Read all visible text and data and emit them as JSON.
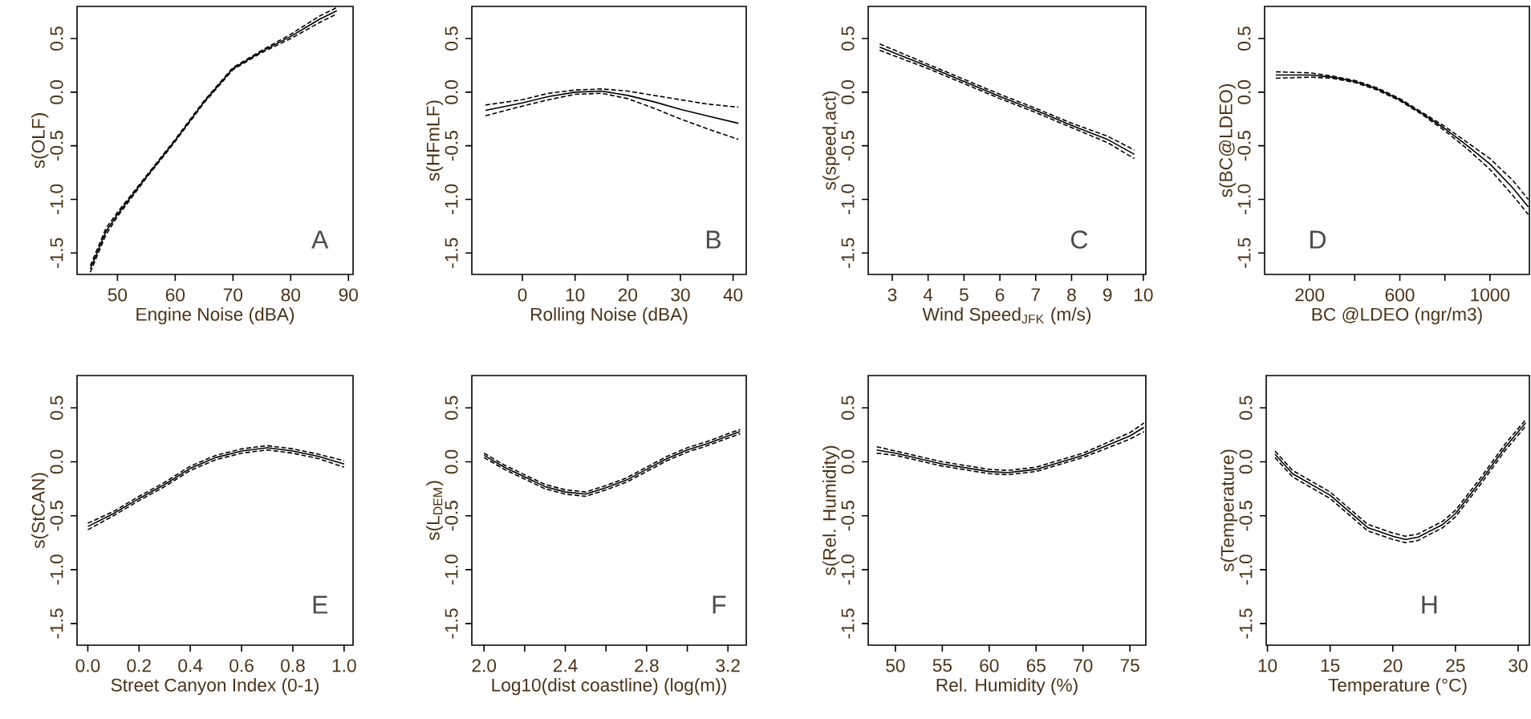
{
  "chart_data": [
    {
      "type": "line",
      "xlabel": "Engine Noise (dBA)",
      "ylabel": "s(OLF)",
      "annotations": [
        "A"
      ],
      "xlim": [
        43,
        90.8
      ],
      "ylim": [
        -1.7,
        0.8
      ],
      "xticks": [
        50,
        60,
        70,
        80,
        90
      ],
      "yticks": [
        {
          "value": -1.5,
          "label": "-1.5"
        },
        {
          "value": -1.0,
          "label": "-1.0"
        },
        {
          "value": -0.5,
          "label": "-0.5"
        },
        {
          "value": 0.0,
          "label": "0.0"
        },
        {
          "value": 0.5,
          "label": "0.5"
        }
      ],
      "grid": false,
      "x": [
        45.3,
        48,
        50,
        55,
        60,
        65,
        70,
        75,
        80,
        85,
        88
      ],
      "series": [
        {
          "color": "#000000",
          "line_style": "solid",
          "values": [
            -1.65,
            -1.3,
            -1.14,
            -0.79,
            -0.45,
            -0.09,
            0.22,
            0.38,
            0.52,
            0.68,
            0.76
          ]
        },
        {
          "color": "#000000",
          "line_style": "dashed",
          "values": [
            -1.68,
            -1.33,
            -1.16,
            -0.8,
            -0.46,
            -0.1,
            0.21,
            0.37,
            0.5,
            0.65,
            0.73
          ]
        },
        {
          "color": "#000000",
          "line_style": "dashed",
          "values": [
            -1.62,
            -1.27,
            -1.12,
            -0.78,
            -0.44,
            -0.08,
            0.23,
            0.39,
            0.54,
            0.71,
            0.79
          ]
        }
      ]
    },
    {
      "type": "line",
      "xlabel": "Rolling Noise (dBA)",
      "ylabel": "s(HFmLF)",
      "annotations": [
        "B"
      ],
      "xlim": [
        -9.6,
        42.5
      ],
      "ylim": [
        -1.7,
        0.8
      ],
      "xticks": [
        0,
        10,
        20,
        30,
        40
      ],
      "yticks": [
        {
          "value": -1.5,
          "label": "-1.5"
        },
        {
          "value": -1.0,
          "label": "-1.0"
        },
        {
          "value": -0.5,
          "label": "-0.5"
        },
        {
          "value": 0.0,
          "label": "0.0"
        },
        {
          "value": 0.5,
          "label": "0.5"
        }
      ],
      "grid": false,
      "x": [
        -7,
        0,
        5,
        10,
        15,
        20,
        25,
        30,
        35,
        41
      ],
      "series": [
        {
          "color": "#000000",
          "line_style": "solid",
          "values": [
            -0.17,
            -0.1,
            -0.04,
            0,
            0.01,
            -0.03,
            -0.09,
            -0.16,
            -0.22,
            -0.29
          ]
        },
        {
          "color": "#000000",
          "line_style": "dashed",
          "values": [
            -0.22,
            -0.13,
            -0.07,
            -0.02,
            -0.01,
            -0.06,
            -0.15,
            -0.25,
            -0.34,
            -0.44
          ]
        },
        {
          "color": "#000000",
          "line_style": "dashed",
          "values": [
            -0.12,
            -0.07,
            -0.01,
            0.02,
            0.03,
            0.01,
            -0.03,
            -0.07,
            -0.11,
            -0.14
          ]
        }
      ]
    },
    {
      "type": "line",
      "xlabel": "Wind Speed$_{JFK}$ (m/s)",
      "ylabel": "s(speed,act)",
      "annotations": [
        "C"
      ],
      "xlim": [
        2.33,
        10.07
      ],
      "ylim": [
        -1.7,
        0.8
      ],
      "xticks": [
        3,
        4,
        5,
        6,
        7,
        8,
        9,
        10
      ],
      "yticks": [
        {
          "value": -1.5,
          "label": "-1.5"
        },
        {
          "value": -1.0,
          "label": "-1.0"
        },
        {
          "value": -0.5,
          "label": "-0.5"
        },
        {
          "value": 0.0,
          "label": "0.0"
        },
        {
          "value": 0.5,
          "label": "0.5"
        }
      ],
      "grid": false,
      "x": [
        2.65,
        4,
        5,
        6,
        7,
        8,
        9,
        9.75
      ],
      "series": [
        {
          "color": "#000000",
          "line_style": "solid",
          "values": [
            0.42,
            0.24,
            0.1,
            -0.04,
            -0.17,
            -0.31,
            -0.44,
            -0.58
          ]
        },
        {
          "color": "#000000",
          "line_style": "dashed",
          "values": [
            0.39,
            0.22,
            0.08,
            -0.06,
            -0.19,
            -0.33,
            -0.47,
            -0.62
          ]
        },
        {
          "color": "#000000",
          "line_style": "dashed",
          "values": [
            0.45,
            0.26,
            0.12,
            -0.02,
            -0.15,
            -0.29,
            -0.41,
            -0.54
          ]
        }
      ]
    },
    {
      "type": "line",
      "xlabel": "BC @LDEO (ngr/m3)",
      "ylabel": "s(BC@LDEO)",
      "annotations": [
        "D"
      ],
      "xlim": [
        0,
        1175
      ],
      "ylim": [
        -1.7,
        0.8
      ],
      "xticks": [
        200,
        {
          "value": 400,
          "label": null
        },
        600,
        {
          "value": 800,
          "label": null
        },
        1000
      ],
      "yticks": [
        {
          "value": -1.5,
          "label": "-1.5"
        },
        {
          "value": -1.0,
          "label": "-1.0"
        },
        {
          "value": -0.5,
          "label": "-0.5"
        },
        {
          "value": 0.0,
          "label": "0.0"
        },
        {
          "value": 0.5,
          "label": "0.5"
        }
      ],
      "grid": false,
      "x": [
        50,
        200,
        300,
        400,
        500,
        600,
        700,
        800,
        900,
        1000,
        1100,
        1170
      ],
      "series": [
        {
          "color": "#000000",
          "line_style": "solid",
          "values": [
            0.16,
            0.16,
            0.14,
            0.1,
            0.03,
            -0.07,
            -0.2,
            -0.34,
            -0.5,
            -0.67,
            -0.89,
            -1.07
          ]
        },
        {
          "color": "#000000",
          "line_style": "dashed",
          "values": [
            0.13,
            0.14,
            0.13,
            0.09,
            0.02,
            -0.08,
            -0.21,
            -0.36,
            -0.53,
            -0.72,
            -0.96,
            -1.14
          ]
        },
        {
          "color": "#000000",
          "line_style": "dashed",
          "values": [
            0.19,
            0.18,
            0.15,
            0.11,
            0.04,
            -0.06,
            -0.19,
            -0.32,
            -0.47,
            -0.62,
            -0.82,
            -1.0
          ]
        }
      ]
    },
    {
      "type": "line",
      "xlabel": "Street Canyon Index (0-1)",
      "ylabel": "s(StCAN)",
      "annotations": [
        "E"
      ],
      "xlim": [
        -0.042,
        1.035
      ],
      "ylim": [
        -1.7,
        0.8
      ],
      "xticks": [
        {
          "value": 0.0,
          "label": "0.0"
        },
        {
          "value": 0.2,
          "label": "0.2"
        },
        {
          "value": 0.4,
          "label": "0.4"
        },
        {
          "value": 0.6,
          "label": "0.6"
        },
        {
          "value": 0.8,
          "label": "0.8"
        },
        {
          "value": 1.0,
          "label": "1.0"
        }
      ],
      "yticks": [
        {
          "value": -1.5,
          "label": "-1.5"
        },
        {
          "value": -1.0,
          "label": "-1.0"
        },
        {
          "value": -0.5,
          "label": "-0.5"
        },
        {
          "value": 0.0,
          "label": "0.0"
        },
        {
          "value": 0.5,
          "label": "0.5"
        }
      ],
      "grid": false,
      "x": [
        0,
        0.1,
        0.2,
        0.3,
        0.4,
        0.5,
        0.6,
        0.7,
        0.8,
        0.9,
        1.0
      ],
      "series": [
        {
          "color": "#000000",
          "line_style": "solid",
          "values": [
            -0.6,
            -0.48,
            -0.34,
            -0.21,
            -0.06,
            0.04,
            0.1,
            0.13,
            0.1,
            0.05,
            -0.02
          ]
        },
        {
          "color": "#000000",
          "line_style": "dashed",
          "values": [
            -0.63,
            -0.5,
            -0.36,
            -0.23,
            -0.08,
            0.02,
            0.08,
            0.11,
            0.08,
            0.03,
            -0.05
          ]
        },
        {
          "color": "#000000",
          "line_style": "dashed",
          "values": [
            -0.57,
            -0.46,
            -0.32,
            -0.19,
            -0.04,
            0.06,
            0.12,
            0.15,
            0.12,
            0.07,
            0.01
          ]
        }
      ]
    },
    {
      "type": "line",
      "xlabel": "Log10(dist coastline) (log(m))",
      "ylabel": "s(L$_{DEM}$)",
      "annotations": [
        "F"
      ],
      "xlim": [
        1.94,
        3.29
      ],
      "ylim": [
        -1.7,
        0.8
      ],
      "xticks": [
        {
          "value": 2.0,
          "label": "2.0"
        },
        {
          "value": 2.2,
          "label": null
        },
        {
          "value": 2.4,
          "label": "2.4"
        },
        {
          "value": 2.6,
          "label": null
        },
        {
          "value": 2.8,
          "label": "2.8"
        },
        {
          "value": 3.0,
          "label": null
        },
        {
          "value": 3.2,
          "label": "3.2"
        }
      ],
      "yticks": [
        {
          "value": -1.5,
          "label": "-1.5"
        },
        {
          "value": -1.0,
          "label": "-1.0"
        },
        {
          "value": -0.5,
          "label": "-0.5"
        },
        {
          "value": 0.0,
          "label": "0.0"
        },
        {
          "value": 0.5,
          "label": "0.5"
        }
      ],
      "grid": false,
      "x": [
        2.0,
        2.1,
        2.2,
        2.3,
        2.4,
        2.5,
        2.6,
        2.7,
        2.8,
        2.9,
        3.0,
        3.1,
        3.2,
        3.26
      ],
      "series": [
        {
          "color": "#000000",
          "line_style": "solid",
          "values": [
            0.06,
            -0.05,
            -0.14,
            -0.23,
            -0.28,
            -0.3,
            -0.24,
            -0.17,
            -0.07,
            0.03,
            0.11,
            0.17,
            0.24,
            0.28
          ]
        },
        {
          "color": "#000000",
          "line_style": "dashed",
          "values": [
            0.04,
            -0.07,
            -0.16,
            -0.25,
            -0.3,
            -0.32,
            -0.26,
            -0.19,
            -0.09,
            0.01,
            0.09,
            0.15,
            0.22,
            0.26
          ]
        },
        {
          "color": "#000000",
          "line_style": "dashed",
          "values": [
            0.08,
            -0.03,
            -0.12,
            -0.21,
            -0.26,
            -0.28,
            -0.22,
            -0.15,
            -0.05,
            0.05,
            0.13,
            0.19,
            0.26,
            0.3
          ]
        }
      ]
    },
    {
      "type": "line",
      "xlabel": "Rel. Humidity (%)",
      "ylabel": "s(Rel. Humidity)",
      "xlim": [
        47.1,
        76.7
      ],
      "ylim": [
        -1.7,
        0.8
      ],
      "xticks": [
        50,
        55,
        60,
        65,
        70,
        75
      ],
      "yticks": [
        {
          "value": -1.5,
          "label": "-1.5"
        },
        {
          "value": -1.0,
          "label": "-1.0"
        },
        {
          "value": -0.5,
          "label": "-0.5"
        },
        {
          "value": 0.0,
          "label": "0.0"
        },
        {
          "value": 0.5,
          "label": "0.5"
        }
      ],
      "grid": false,
      "x": [
        48,
        50,
        55,
        60,
        62,
        65,
        70,
        75,
        76.5
      ],
      "series": [
        {
          "color": "#000000",
          "line_style": "solid",
          "values": [
            0.11,
            0.08,
            -0.02,
            -0.09,
            -0.1,
            -0.07,
            0.06,
            0.24,
            0.32
          ]
        },
        {
          "color": "#000000",
          "line_style": "dashed",
          "values": [
            0.08,
            0.06,
            -0.04,
            -0.11,
            -0.12,
            -0.09,
            0.04,
            0.21,
            0.28
          ]
        },
        {
          "color": "#000000",
          "line_style": "dashed",
          "values": [
            0.14,
            0.1,
            0,
            -0.07,
            -0.08,
            -0.05,
            0.08,
            0.27,
            0.36
          ]
        }
      ]
    },
    {
      "type": "line",
      "xlabel": "Temperature (°C)",
      "ylabel": "s(Temperature)",
      "annotations": [
        "H"
      ],
      "xlim": [
        9.9,
        30.9
      ],
      "ylim": [
        -1.7,
        0.8
      ],
      "xticks": [
        10,
        15,
        20,
        25,
        30
      ],
      "yticks": [
        {
          "value": -1.5,
          "label": "-1.5"
        },
        {
          "value": -1.0,
          "label": "-1.0"
        },
        {
          "value": -0.5,
          "label": "-0.5"
        },
        {
          "value": 0.0,
          "label": "0.0"
        },
        {
          "value": 0.5,
          "label": "0.5"
        }
      ],
      "grid": false,
      "x": [
        10.6,
        12,
        15,
        18,
        20,
        21,
        22,
        24,
        25,
        27,
        29,
        30.6
      ],
      "series": [
        {
          "color": "#000000",
          "line_style": "solid",
          "values": [
            0.07,
            -0.11,
            -0.31,
            -0.61,
            -0.69,
            -0.72,
            -0.7,
            -0.58,
            -0.48,
            -0.18,
            0.14,
            0.36
          ]
        },
        {
          "color": "#000000",
          "line_style": "dashed",
          "values": [
            0.04,
            -0.14,
            -0.34,
            -0.64,
            -0.72,
            -0.75,
            -0.73,
            -0.61,
            -0.51,
            -0.21,
            0.11,
            0.33
          ]
        },
        {
          "color": "#000000",
          "line_style": "dashed",
          "values": [
            0.1,
            -0.08,
            -0.28,
            -0.58,
            -0.66,
            -0.69,
            -0.67,
            -0.55,
            -0.45,
            -0.15,
            0.17,
            0.39
          ]
        }
      ]
    }
  ]
}
